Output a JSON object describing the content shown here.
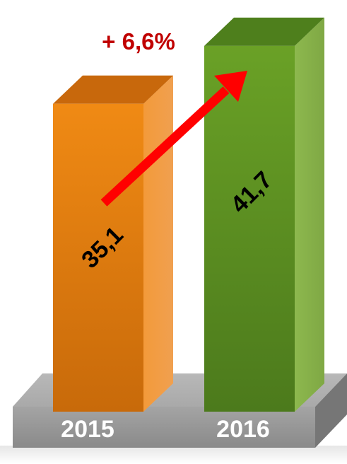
{
  "chart_data": {
    "type": "bar",
    "categories": [
      "2015",
      "2016"
    ],
    "values": [
      35.1,
      41.7
    ],
    "data_labels": [
      "35,1",
      "41,7"
    ],
    "change_label": "+ 6,6%",
    "colors": {
      "bar_2015": "#e07810",
      "bar_2016": "#5f9422",
      "arrow": "#ff0000",
      "change_label": "#c00000",
      "base": "#a8a8a8"
    }
  }
}
